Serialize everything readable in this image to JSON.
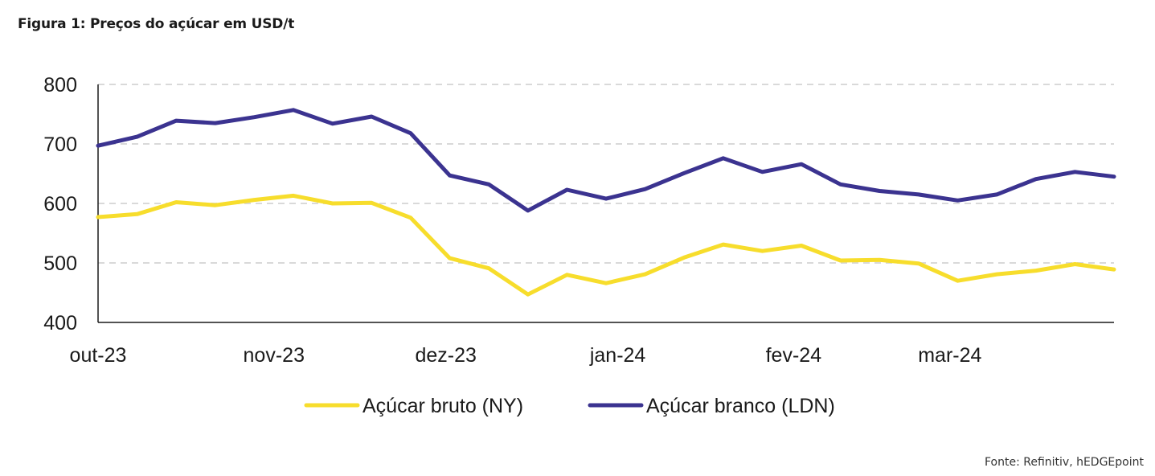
{
  "title": "Figura 1: Preços do açúcar em USD/t",
  "source": "Fonte: Refinitiv, hEDGEpoint",
  "colors": {
    "bruto": "#f7dd2c",
    "branco": "#3b3390",
    "grid": "#d9d9d9",
    "axis": "#1a1a1a"
  },
  "chart_data": {
    "type": "line",
    "title": "Figura 1: Preços do açúcar em USD/t",
    "xlabel": "",
    "ylabel": "",
    "ylim": [
      400,
      800
    ],
    "yticks": [
      "400",
      "500",
      "600",
      "700",
      "800"
    ],
    "xtick_labels": [
      {
        "label": "out-23",
        "index": 0
      },
      {
        "label": "nov-23",
        "index": 4.5
      },
      {
        "label": "dez-23",
        "index": 8.9
      },
      {
        "label": "jan-24",
        "index": 13.3
      },
      {
        "label": "fev-24",
        "index": 17.8
      },
      {
        "label": "mar-24",
        "index": 21.8
      }
    ],
    "grid": "horizontal dashed",
    "legend_position": "bottom",
    "series": [
      {
        "name": "Açúcar bruto (NY)",
        "color": "#f7dd2c",
        "values": [
          577,
          582,
          602,
          597,
          606,
          613,
          600,
          601,
          576,
          508,
          491,
          447,
          480,
          466,
          481,
          509,
          531,
          520,
          529,
          504,
          505,
          499,
          470,
          481,
          487,
          498,
          489
        ]
      },
      {
        "name": "Açúcar branco (LDN)",
        "color": "#3b3390",
        "values": [
          697,
          712,
          739,
          735,
          745,
          757,
          734,
          746,
          718,
          647,
          632,
          588,
          623,
          608,
          624,
          651,
          676,
          653,
          666,
          632,
          621,
          615,
          605,
          615,
          641,
          653,
          645
        ]
      }
    ]
  }
}
